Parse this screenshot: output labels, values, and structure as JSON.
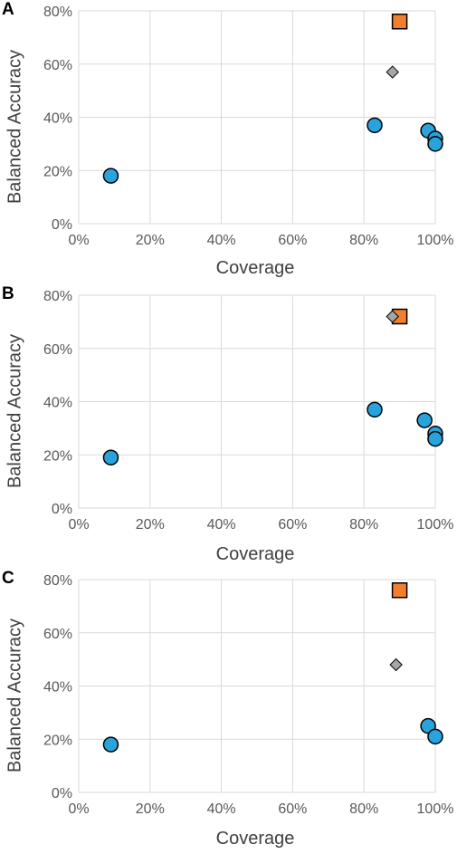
{
  "chart_data": [
    {
      "panel": "A",
      "type": "scatter",
      "xlabel": "Coverage",
      "ylabel": "Balanced Accuracy",
      "xlim": [
        0,
        100
      ],
      "ylim": [
        0,
        80
      ],
      "xticks": [
        "0%",
        "20%",
        "40%",
        "60%",
        "80%",
        "100%"
      ],
      "yticks": [
        "0%",
        "20%",
        "40%",
        "60%",
        "80%"
      ],
      "grid": true,
      "series": [
        {
          "marker": "circle",
          "color": "#29a3dc",
          "points": [
            [
              9,
              18
            ],
            [
              83,
              37
            ],
            [
              98,
              35
            ],
            [
              100,
              32
            ],
            [
              100,
              30
            ]
          ]
        },
        {
          "marker": "square",
          "color": "#f07f2e",
          "points": [
            [
              90,
              76
            ]
          ]
        },
        {
          "marker": "diamond",
          "color": "#a6a6a6",
          "points": [
            [
              88,
              57
            ]
          ]
        }
      ]
    },
    {
      "panel": "B",
      "type": "scatter",
      "xlabel": "Coverage",
      "ylabel": "Balanced Accuracy",
      "xlim": [
        0,
        100
      ],
      "ylim": [
        0,
        80
      ],
      "xticks": [
        "0%",
        "20%",
        "40%",
        "60%",
        "80%",
        "100%"
      ],
      "yticks": [
        "0%",
        "20%",
        "40%",
        "60%",
        "80%"
      ],
      "grid": true,
      "series": [
        {
          "marker": "circle",
          "color": "#29a3dc",
          "points": [
            [
              9,
              19
            ],
            [
              83,
              37
            ],
            [
              97,
              33
            ],
            [
              100,
              28
            ],
            [
              100,
              26
            ]
          ]
        },
        {
          "marker": "square",
          "color": "#f07f2e",
          "points": [
            [
              90,
              72
            ]
          ]
        },
        {
          "marker": "diamond",
          "color": "#a6a6a6",
          "points": [
            [
              88,
              72
            ]
          ]
        }
      ]
    },
    {
      "panel": "C",
      "type": "scatter",
      "xlabel": "Coverage",
      "ylabel": "Balanced Accuracy",
      "xlim": [
        0,
        100
      ],
      "ylim": [
        0,
        80
      ],
      "xticks": [
        "0%",
        "20%",
        "40%",
        "60%",
        "80%",
        "100%"
      ],
      "yticks": [
        "0%",
        "20%",
        "40%",
        "60%",
        "80%"
      ],
      "grid": true,
      "series": [
        {
          "marker": "circle",
          "color": "#29a3dc",
          "points": [
            [
              9,
              18
            ],
            [
              98,
              25
            ],
            [
              100,
              21
            ]
          ]
        },
        {
          "marker": "square",
          "color": "#f07f2e",
          "points": [
            [
              90,
              76
            ]
          ]
        },
        {
          "marker": "diamond",
          "color": "#a6a6a6",
          "points": [
            [
              89,
              48
            ]
          ]
        }
      ]
    }
  ]
}
